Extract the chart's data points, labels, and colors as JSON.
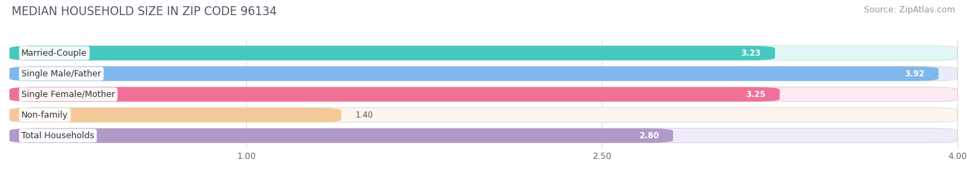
{
  "title": "MEDIAN HOUSEHOLD SIZE IN ZIP CODE 96134",
  "source": "Source: ZipAtlas.com",
  "categories": [
    "Married-Couple",
    "Single Male/Father",
    "Single Female/Mother",
    "Non-family",
    "Total Households"
  ],
  "values": [
    3.23,
    3.92,
    3.25,
    1.4,
    2.8
  ],
  "bar_colors": [
    "#45C8C0",
    "#7EB8EC",
    "#F07098",
    "#F5C898",
    "#B09AC8"
  ],
  "bg_colors": [
    "#E2F7F7",
    "#E5EEF9",
    "#FDEAF2",
    "#FEF6EE",
    "#F0EBF8"
  ],
  "xlim_min": 0.0,
  "xlim_max": 4.0,
  "xticks": [
    1.0,
    2.5,
    4.0
  ],
  "title_fontsize": 12,
  "label_fontsize": 9,
  "value_fontsize": 8.5,
  "tick_fontsize": 9,
  "source_fontsize": 9,
  "bar_height": 0.7,
  "fig_bg": "#FFFFFF",
  "grid_color": "#DDDDDD"
}
